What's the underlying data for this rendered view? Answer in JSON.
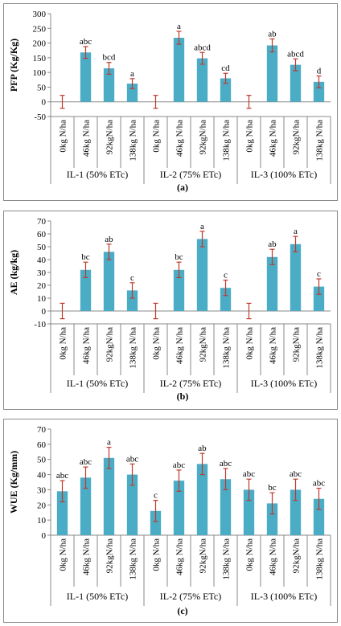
{
  "chart_data": [
    {
      "type": "bar",
      "panel_label": "(a)",
      "ylabel": "PFP (Kg/Kg)",
      "ylim": [
        -50,
        300
      ],
      "yticks": [
        -50,
        0,
        50,
        100,
        150,
        200,
        250,
        300
      ],
      "categories": [
        "0kg N/ha",
        "46kg N/ha",
        "92kgN/ha",
        "138kg N/ha",
        "0kg N/ha",
        "46kg N/ha",
        "92kgN/ha",
        "138kg N/ha",
        "0kg N/ha",
        "46kg N/ha",
        "92kgN/ha",
        "138kg N/ha"
      ],
      "groups": [
        "IL-1 (50% ETc)",
        "IL-2 (75% ETc)",
        "IL-3 (100% ETc)"
      ],
      "values": [
        0,
        168,
        114,
        62,
        0,
        218,
        148,
        80,
        0,
        192,
        126,
        68
      ],
      "errors": [
        22,
        20,
        20,
        17,
        22,
        22,
        20,
        17,
        22,
        22,
        20,
        20
      ],
      "letters": [
        "",
        "abc",
        "bcd",
        "a",
        "",
        "a",
        "abcd",
        "cd",
        "",
        "ab",
        "abcd",
        "d"
      ],
      "color": "#4bacc6",
      "error_color": "#c0392b"
    },
    {
      "type": "bar",
      "panel_label": "(b)",
      "ylabel": "AE (kg/kg)",
      "ylim": [
        -10,
        70
      ],
      "yticks": [
        -10,
        0,
        10,
        20,
        30,
        40,
        50,
        60,
        70
      ],
      "categories": [
        "0kg N/ha",
        "46kg N/ha",
        "92kgN/ha",
        "138kg N/ha",
        "0kg N/ha",
        "46kg N/ha",
        "92kgN/ha",
        "138kg N/ha",
        "0kg N/ha",
        "46kg N/ha",
        "92kgN/ha",
        "138kg N/ha"
      ],
      "groups": [
        "IL-1 (50% ETc)",
        "IL-2 (75% ETc)",
        "IL-3 (100% ETc)"
      ],
      "values": [
        0,
        32,
        46,
        16,
        0,
        32,
        56,
        18,
        0,
        42,
        52,
        19
      ],
      "errors": [
        6,
        6,
        6,
        6,
        6,
        6,
        6,
        6,
        6,
        6,
        6,
        6
      ],
      "letters": [
        "",
        "bc",
        "ab",
        "c",
        "",
        "bc",
        "a",
        "c",
        "",
        "ab",
        "a",
        "c"
      ],
      "color": "#4bacc6",
      "error_color": "#c0392b"
    },
    {
      "type": "bar",
      "panel_label": "(c)",
      "ylabel": "WUE (Kg/mm)",
      "ylim": [
        0,
        70
      ],
      "yticks": [
        0,
        10,
        20,
        30,
        40,
        50,
        60,
        70
      ],
      "categories": [
        "0kg N/ha",
        "46kg N/ha",
        "92kgN/ha",
        "138kg N/ha",
        "0kg N/ha",
        "46kg N/ha",
        "92kgN/ha",
        "138kg N/ha",
        "0kg N/ha",
        "46kg N/ha",
        "92kgN/ha",
        "138kg N/ha"
      ],
      "groups": [
        "IL-1 (50% ETc)",
        "IL-2 (75% ETc)",
        "IL-3 (100% ETc)"
      ],
      "values": [
        29,
        38,
        51,
        40,
        16,
        36,
        47,
        37,
        30,
        21,
        30,
        24
      ],
      "errors": [
        7,
        7,
        7,
        7,
        7,
        7,
        7,
        7,
        7,
        7,
        7,
        7
      ],
      "letters": [
        "abc",
        "abc",
        "a",
        "abc",
        "c",
        "abc",
        "ab",
        "abc",
        "abc",
        "bc",
        "abc",
        "abc"
      ],
      "color": "#4bacc6",
      "error_color": "#c0392b"
    }
  ]
}
